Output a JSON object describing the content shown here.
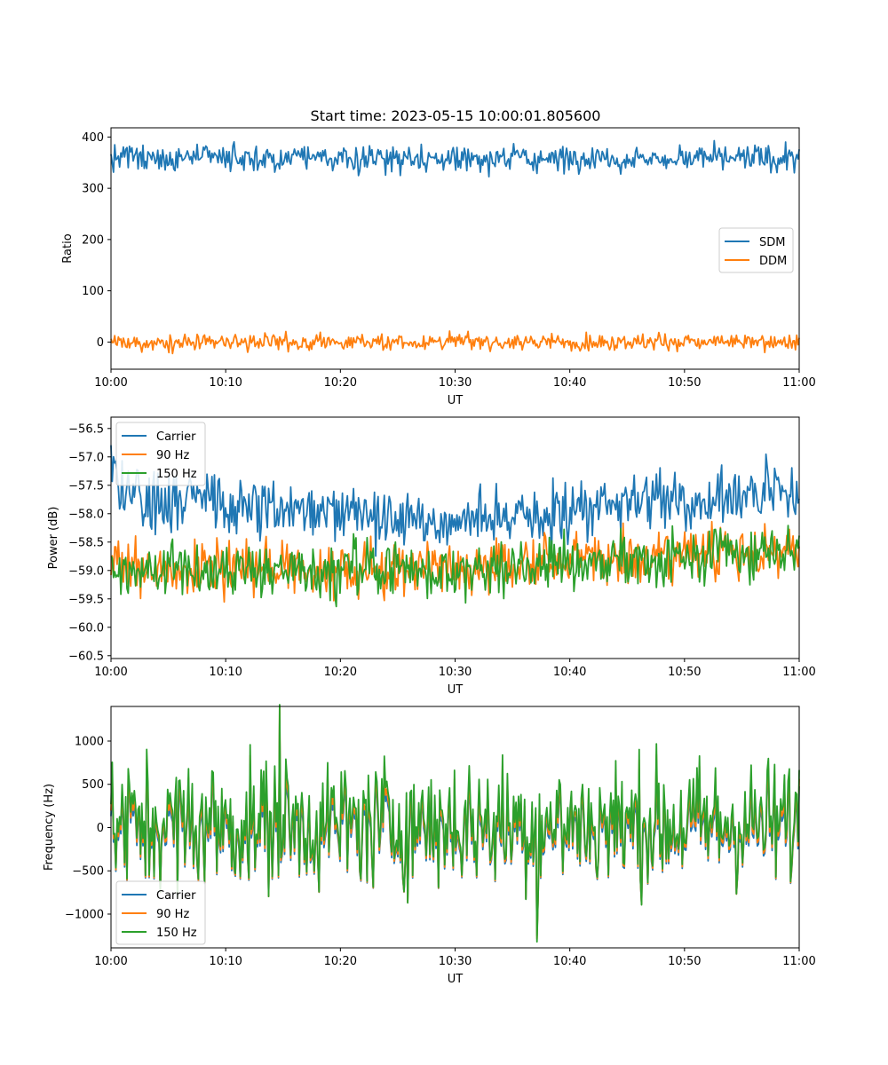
{
  "figure": {
    "title": "Start time: 2023-05-15 10:00:01.805600"
  },
  "colors": {
    "blue": "#1f77b4",
    "orange": "#ff7f0e",
    "green": "#2ca02c"
  },
  "chart_data": [
    {
      "type": "line",
      "title": "Start time: 2023-05-15 10:00:01.805600",
      "xlabel": "UT",
      "ylabel": "Ratio",
      "xlim": [
        "10:00",
        "11:00"
      ],
      "ylim": [
        -53,
        418
      ],
      "xticks": [
        "10:00",
        "10:10",
        "10:20",
        "10:30",
        "10:40",
        "10:50",
        "11:00"
      ],
      "yticks": [
        "0",
        "100",
        "200",
        "300",
        "400"
      ],
      "ytick_values": [
        0,
        100,
        200,
        300,
        400
      ],
      "legend": "center-right",
      "series": [
        {
          "name": "SDM",
          "color": "#1f77b4",
          "mean": 358,
          "min": 312,
          "max": 395
        },
        {
          "name": "DDM",
          "color": "#ff7f0e",
          "mean": 0,
          "min": -30,
          "max": 32
        }
      ]
    },
    {
      "type": "line",
      "title": "",
      "xlabel": "UT",
      "ylabel": "Power (dB)",
      "xlim": [
        "10:00",
        "11:00"
      ],
      "ylim": [
        -60.55,
        -56.3
      ],
      "xticks": [
        "10:00",
        "10:10",
        "10:20",
        "10:30",
        "10:40",
        "10:50",
        "11:00"
      ],
      "yticks": [
        "−56.5",
        "−57.0",
        "−57.5",
        "−58.0",
        "−58.5",
        "−59.0",
        "−59.5",
        "−60.0",
        "−60.5"
      ],
      "ytick_values": [
        -56.5,
        -57.0,
        -57.5,
        -58.0,
        -58.5,
        -59.0,
        -59.5,
        -60.0,
        -60.5
      ],
      "legend": "upper-left",
      "series": [
        {
          "name": "Carrier",
          "color": "#1f77b4",
          "start_mean": -57.7,
          "mid_mean": -58.1,
          "end_mean": -57.6
        },
        {
          "name": "90 Hz",
          "color": "#ff7f0e",
          "start_mean": -58.9,
          "mid_mean": -59.0,
          "end_mean": -58.6
        },
        {
          "name": "150 Hz",
          "color": "#2ca02c",
          "start_mean": -59.0,
          "mid_mean": -59.0,
          "end_mean": -58.6
        }
      ]
    },
    {
      "type": "line",
      "title": "",
      "xlabel": "UT",
      "ylabel": "Frequency (Hz)",
      "xlim": [
        "10:00",
        "11:00"
      ],
      "ylim": [
        -1390,
        1400
      ],
      "xticks": [
        "10:00",
        "10:10",
        "10:20",
        "10:30",
        "10:40",
        "10:50",
        "11:00"
      ],
      "yticks": [
        "1000",
        "500",
        "0",
        "−500",
        "−1000"
      ],
      "ytick_values": [
        1000,
        500,
        0,
        -500,
        -1000
      ],
      "legend": "lower-left",
      "series": [
        {
          "name": "Carrier",
          "color": "#1f77b4",
          "offset": -50
        },
        {
          "name": "90 Hz",
          "color": "#ff7f0e",
          "offset": 0
        },
        {
          "name": "150 Hz",
          "color": "#2ca02c",
          "offset": 60
        }
      ],
      "extremes": {
        "max": 1360,
        "min": -1250
      }
    }
  ]
}
